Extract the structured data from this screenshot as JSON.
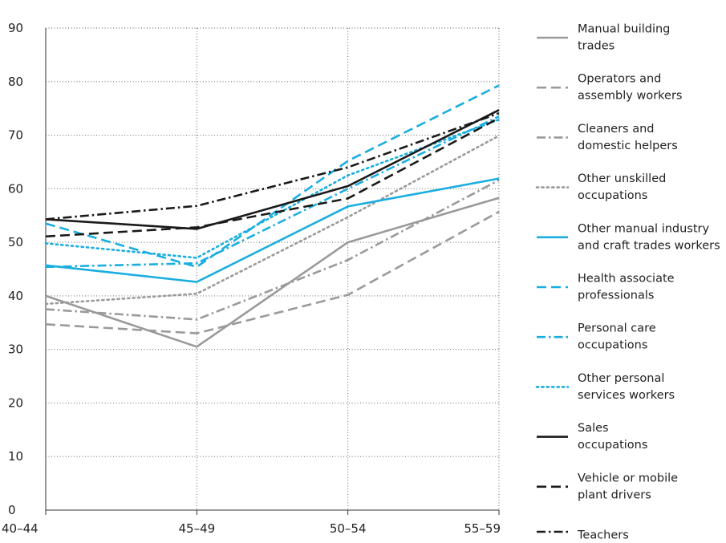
{
  "chart_data": {
    "type": "line",
    "title": "",
    "xlabel": "",
    "ylabel": "",
    "categories": [
      "40–44",
      "45–49",
      "50–54",
      "55–59"
    ],
    "ylim": [
      0,
      90
    ],
    "yticks": [
      0,
      10,
      20,
      30,
      40,
      50,
      60,
      70,
      80,
      90
    ],
    "grid": "dotted, both axes",
    "legend_placement": "right",
    "series": [
      {
        "name": "Manual building trades",
        "legend_lines": [
          "Manual building",
          "trades"
        ],
        "values": [
          40,
          30.5,
          50,
          58.3
        ],
        "color": "#9a9a9a",
        "style": "solid"
      },
      {
        "name": "Operators and assembly workers",
        "legend_lines": [
          "Operators and",
          "assembly workers"
        ],
        "values": [
          34.7,
          33,
          40.2,
          55.7
        ],
        "color": "#9a9a9a",
        "style": "dashed"
      },
      {
        "name": "Cleaners and domestic helpers",
        "legend_lines": [
          "Cleaners and",
          "domestic helpers"
        ],
        "values": [
          37.5,
          35.6,
          46.7,
          61.6
        ],
        "color": "#9a9a9a",
        "style": "dashdot"
      },
      {
        "name": "Other unskilled occupations",
        "legend_lines": [
          "Other unskilled",
          "occupations"
        ],
        "values": [
          38.5,
          40.4,
          54.7,
          69.9
        ],
        "color": "#9a9a9a",
        "style": "dotted"
      },
      {
        "name": "Other manual industry and craft trades workers",
        "legend_lines": [
          "Other manual industry",
          "and craft trades workers"
        ],
        "values": [
          45.7,
          42.6,
          56.7,
          61.9
        ],
        "color": "#1aaee0",
        "style": "solid"
      },
      {
        "name": "Health associate professionals",
        "legend_lines": [
          "Health associate",
          "professionals"
        ],
        "values": [
          53.5,
          45.4,
          65.2,
          79.3
        ],
        "color": "#1aaee0",
        "style": "dashed"
      },
      {
        "name": "Personal care occupations",
        "legend_lines": [
          "Personal care",
          "occupations"
        ],
        "values": [
          45.4,
          46.1,
          60,
          73.5
        ],
        "color": "#1aaee0",
        "style": "dashdot"
      },
      {
        "name": "Other personal services workers",
        "legend_lines": [
          "Other personal",
          "services workers"
        ],
        "values": [
          49.8,
          47.1,
          62.5,
          72.9
        ],
        "color": "#1aaee0",
        "style": "dotted"
      },
      {
        "name": "Sales occupations",
        "legend_lines": [
          "Sales",
          "occupations"
        ],
        "values": [
          54.3,
          52.5,
          60.5,
          74.7
        ],
        "color": "#1a1a1a",
        "style": "solid"
      },
      {
        "name": "Vehicle or mobile plant drivers",
        "legend_lines": [
          "Vehicle or mobile",
          "plant drivers"
        ],
        "values": [
          51.1,
          52.8,
          58.2,
          73.2
        ],
        "color": "#1a1a1a",
        "style": "dashed"
      },
      {
        "name": "Teachers",
        "legend_lines": [
          "Teachers"
        ],
        "values": [
          54.3,
          56.8,
          64,
          74.1
        ],
        "color": "#1a1a1a",
        "style": "dashdot"
      }
    ]
  }
}
